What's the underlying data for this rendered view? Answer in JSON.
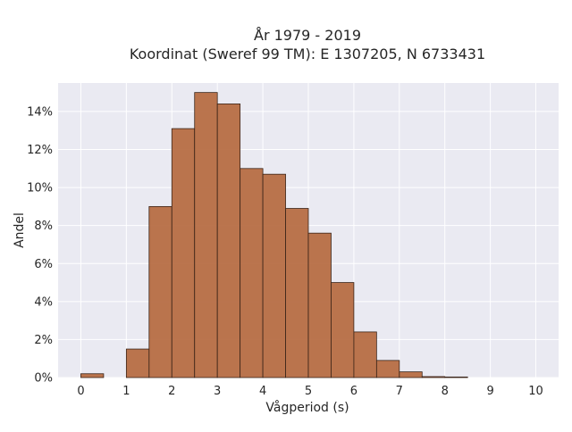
{
  "chart_data": {
    "type": "bar",
    "title_line1": "År 1979 - 2019",
    "title_line2": "Koordinat (Sweref 99 TM): E 1307205, N 6733431",
    "xlabel": "Vågperiod (s)",
    "ylabel": "Andel",
    "xlim": [
      -0.5,
      10.5
    ],
    "ylim": [
      0,
      15.5
    ],
    "x_ticks": [
      "0",
      "1",
      "2",
      "3",
      "4",
      "5",
      "6",
      "7",
      "8",
      "9",
      "10"
    ],
    "y_ticks": [
      "0%",
      "2%",
      "4%",
      "6%",
      "8%",
      "10%",
      "12%",
      "14%"
    ],
    "bin_width": 0.5,
    "bins": [
      {
        "start": 0.0,
        "value": 0.2
      },
      {
        "start": 0.5,
        "value": 0.0
      },
      {
        "start": 1.0,
        "value": 1.5
      },
      {
        "start": 1.5,
        "value": 9.0
      },
      {
        "start": 2.0,
        "value": 13.1
      },
      {
        "start": 2.5,
        "value": 15.0
      },
      {
        "start": 3.0,
        "value": 14.4
      },
      {
        "start": 3.5,
        "value": 11.0
      },
      {
        "start": 4.0,
        "value": 10.7
      },
      {
        "start": 4.5,
        "value": 8.9
      },
      {
        "start": 5.0,
        "value": 7.6
      },
      {
        "start": 5.5,
        "value": 5.0
      },
      {
        "start": 6.0,
        "value": 2.4
      },
      {
        "start": 6.5,
        "value": 0.9
      },
      {
        "start": 7.0,
        "value": 0.3
      },
      {
        "start": 7.5,
        "value": 0.05
      },
      {
        "start": 8.0,
        "value": 0.03
      }
    ],
    "grid": true,
    "colors": {
      "bar_fill": "#b5693f",
      "bar_edge": "#3a2418",
      "plot_background": "#eaeaf2",
      "grid": "#ffffff"
    }
  }
}
